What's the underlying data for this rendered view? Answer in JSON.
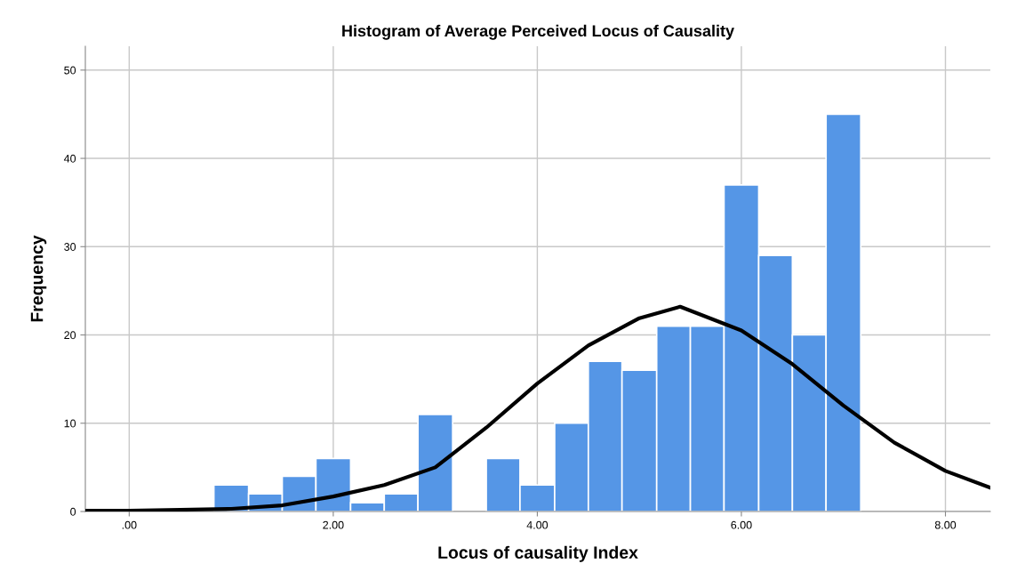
{
  "chart_data": {
    "type": "histogram",
    "title": "Histogram of Average Perceived Locus of Causality",
    "xlabel": "Locus of causality Index",
    "ylabel": "Frequency",
    "bins": [
      0.83,
      1.17,
      1.5,
      1.83,
      2.17,
      2.5,
      2.83,
      3.17,
      3.5,
      3.83,
      4.17,
      4.5,
      4.83,
      5.17,
      5.5,
      5.83,
      6.17,
      6.5,
      6.83,
      7.17
    ],
    "values": [
      3,
      2,
      4,
      6,
      1,
      2,
      11,
      0,
      6,
      3,
      10,
      17,
      16,
      21,
      21,
      37,
      29,
      20,
      45
    ],
    "color": "#5596e6",
    "series": [
      {
        "type": "line",
        "color": "#000000",
        "x": [
          -0.43,
          0,
          0.5,
          1,
          1.5,
          2,
          2.5,
          3,
          3.5,
          4,
          4.5,
          5,
          5.4,
          6,
          6.5,
          7,
          7.5,
          8,
          8.44
        ],
        "values": [
          0.1,
          0.1,
          0.2,
          0.3,
          0.7,
          1.7,
          3.0,
          5.0,
          9.5,
          14.5,
          18.8,
          21.9,
          23.2,
          20.5,
          16.7,
          12.0,
          7.8,
          4.6,
          2.7
        ]
      }
    ],
    "xlim": [
      -0.43,
      8.44
    ],
    "xticks": [
      {
        "value": 0,
        "label": ".00"
      },
      {
        "value": 2,
        "label": "2.00"
      },
      {
        "value": 4,
        "label": "4.00"
      },
      {
        "value": 6,
        "label": "6.00"
      },
      {
        "value": 8,
        "label": "8.00"
      }
    ],
    "ylim": [
      0,
      52.7
    ],
    "yticks": [
      0,
      10,
      20,
      30,
      40,
      50
    ],
    "grid": true
  }
}
